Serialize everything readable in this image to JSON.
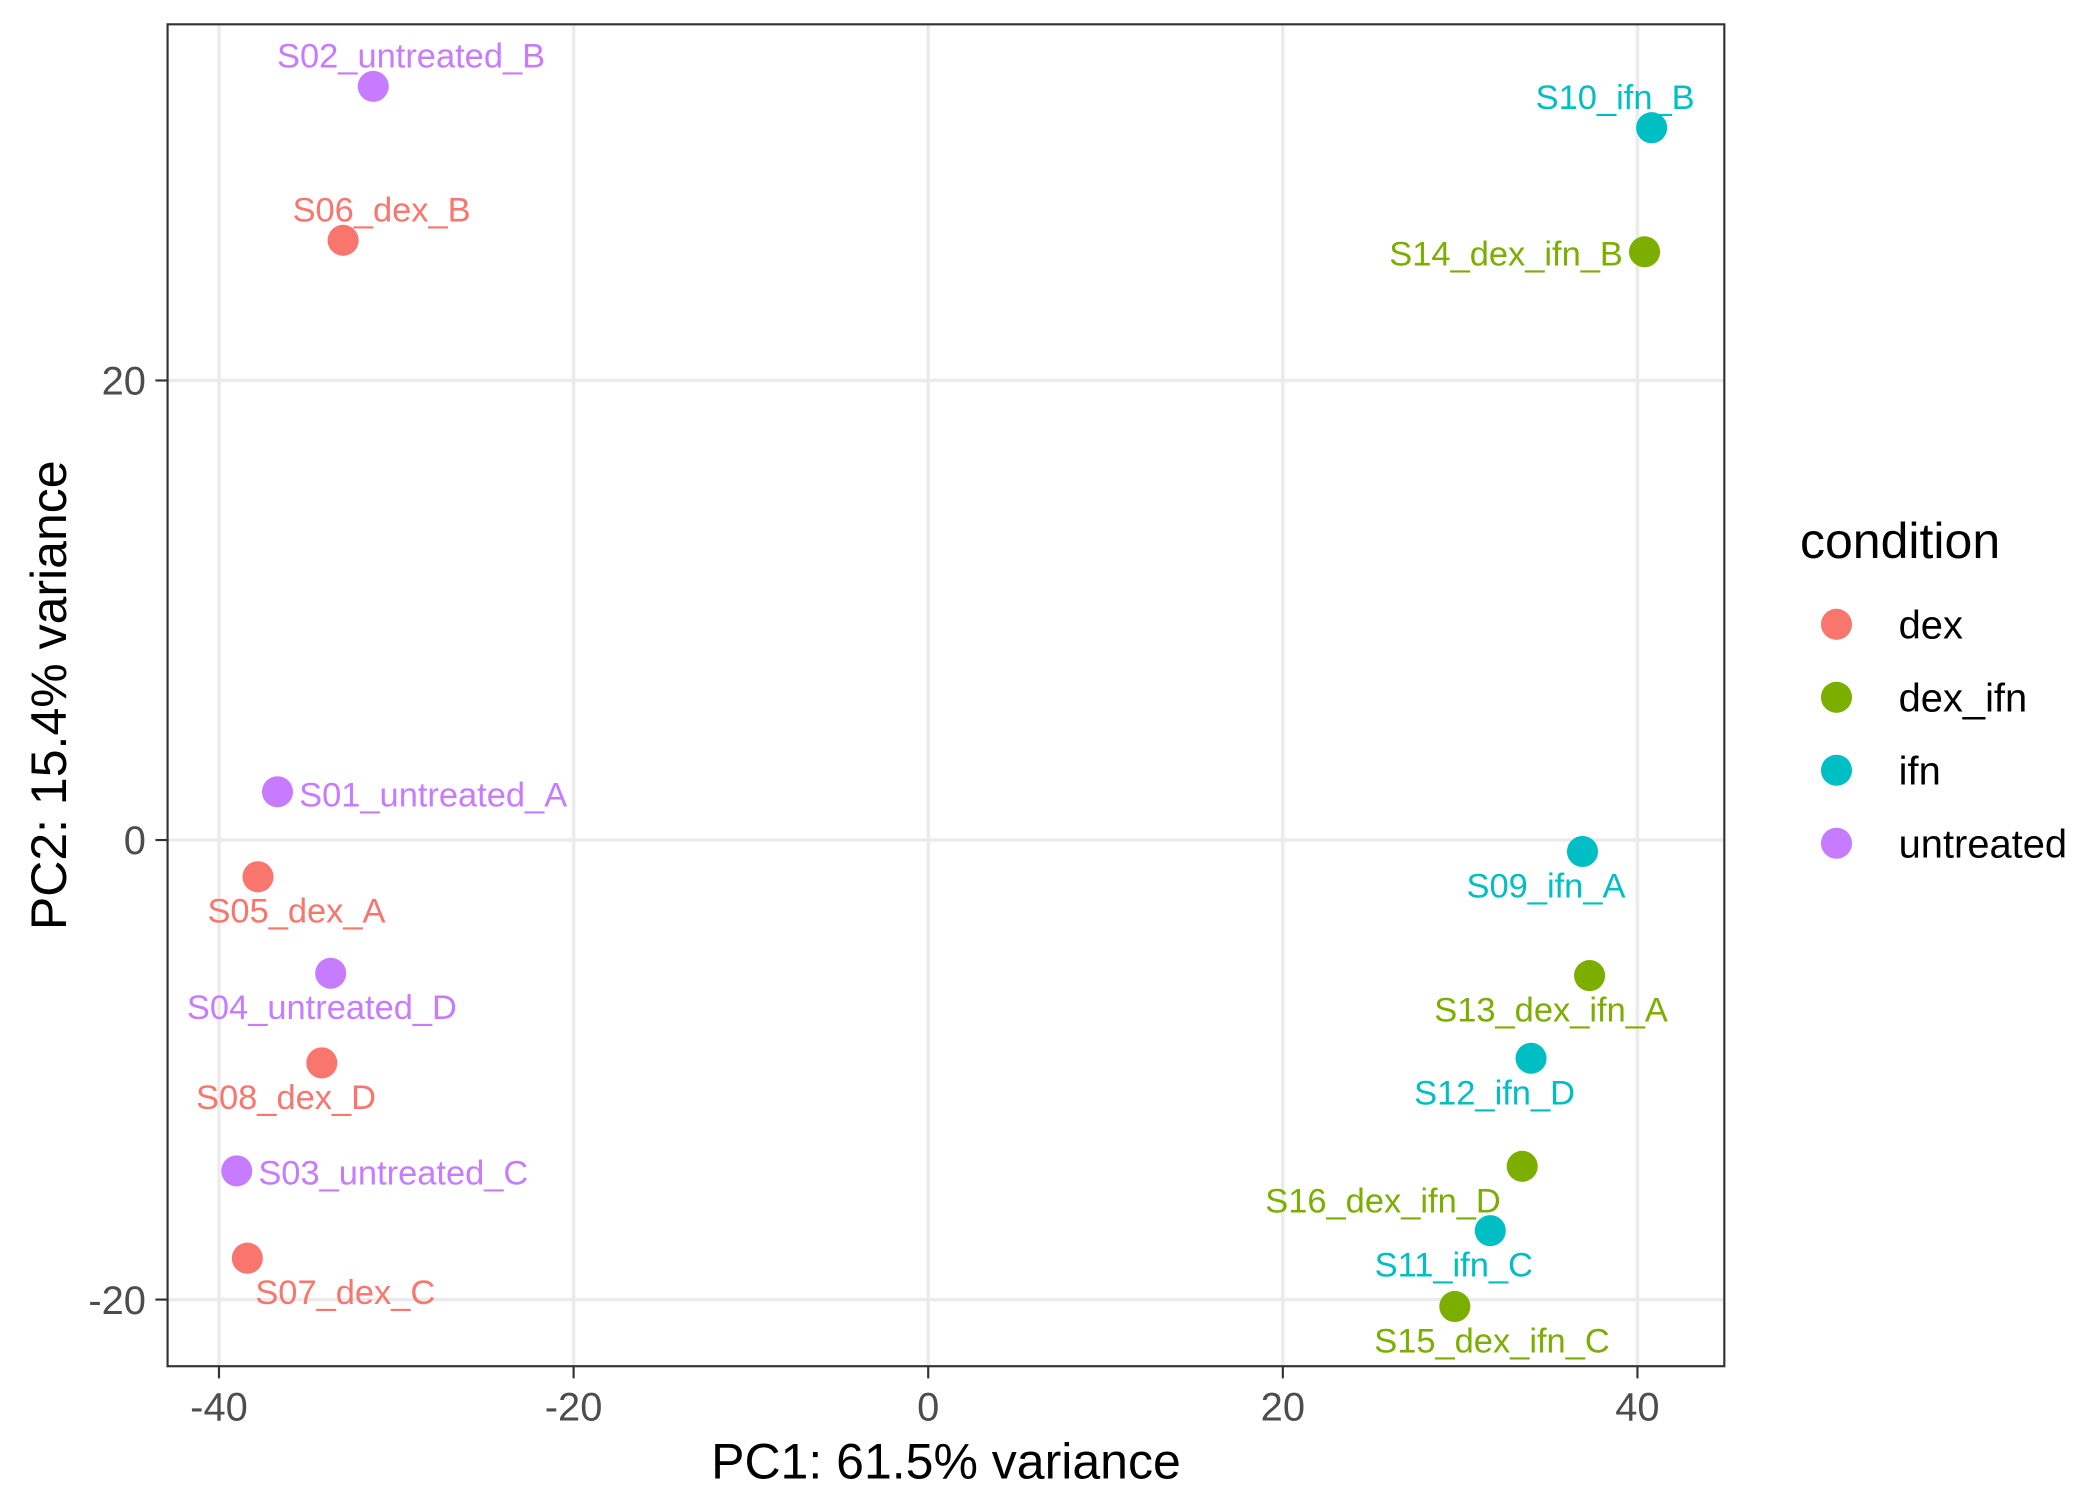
{
  "chart_data": {
    "type": "scatter",
    "xlabel": "PC1: 61.5% variance",
    "ylabel": "PC2: 15.4% variance",
    "xlim": [
      -42.9,
      44.9
    ],
    "ylim": [
      -22.9,
      35.5
    ],
    "xticks": [
      -40,
      -20,
      0,
      20,
      40
    ],
    "yticks": [
      -20,
      0,
      20
    ],
    "grid": true,
    "legend": {
      "title": "condition",
      "placement": "right"
    },
    "series": [
      {
        "name": "dex",
        "color": "#F8766D",
        "points": [
          {
            "label": "S06_dex_B",
            "x": -33.0,
            "y": 26.1
          },
          {
            "label": "S05_dex_A",
            "x": -37.8,
            "y": -1.6
          },
          {
            "label": "S08_dex_D",
            "x": -34.2,
            "y": -9.7
          },
          {
            "label": "S07_dex_C",
            "x": -38.4,
            "y": -18.2
          }
        ]
      },
      {
        "name": "dex_ifn",
        "color": "#7CAE00",
        "points": [
          {
            "label": "S14_dex_ifn_B",
            "x": 40.4,
            "y": 25.6
          },
          {
            "label": "S13_dex_ifn_A",
            "x": 37.3,
            "y": -5.9
          },
          {
            "label": "S16_dex_ifn_D",
            "x": 33.5,
            "y": -14.2
          },
          {
            "label": "S15_dex_ifn_C",
            "x": 29.7,
            "y": -20.3
          }
        ]
      },
      {
        "name": "ifn",
        "color": "#00BFC4",
        "points": [
          {
            "label": "S10_ifn_B",
            "x": 40.8,
            "y": 31.0
          },
          {
            "label": "S09_ifn_A",
            "x": 36.9,
            "y": -0.5
          },
          {
            "label": "S12_ifn_D",
            "x": 34.0,
            "y": -9.5
          },
          {
            "label": "S11_ifn_C",
            "x": 31.7,
            "y": -17.0
          }
        ]
      },
      {
        "name": "untreated",
        "color": "#C77CFF",
        "points": [
          {
            "label": "S02_untreated_B",
            "x": -31.3,
            "y": 32.8
          },
          {
            "label": "S01_untreated_A",
            "x": -36.7,
            "y": 2.1
          },
          {
            "label": "S04_untreated_D",
            "x": -33.7,
            "y": -5.8
          },
          {
            "label": "S03_untreated_C",
            "x": -39.0,
            "y": -14.4
          }
        ]
      }
    ]
  }
}
